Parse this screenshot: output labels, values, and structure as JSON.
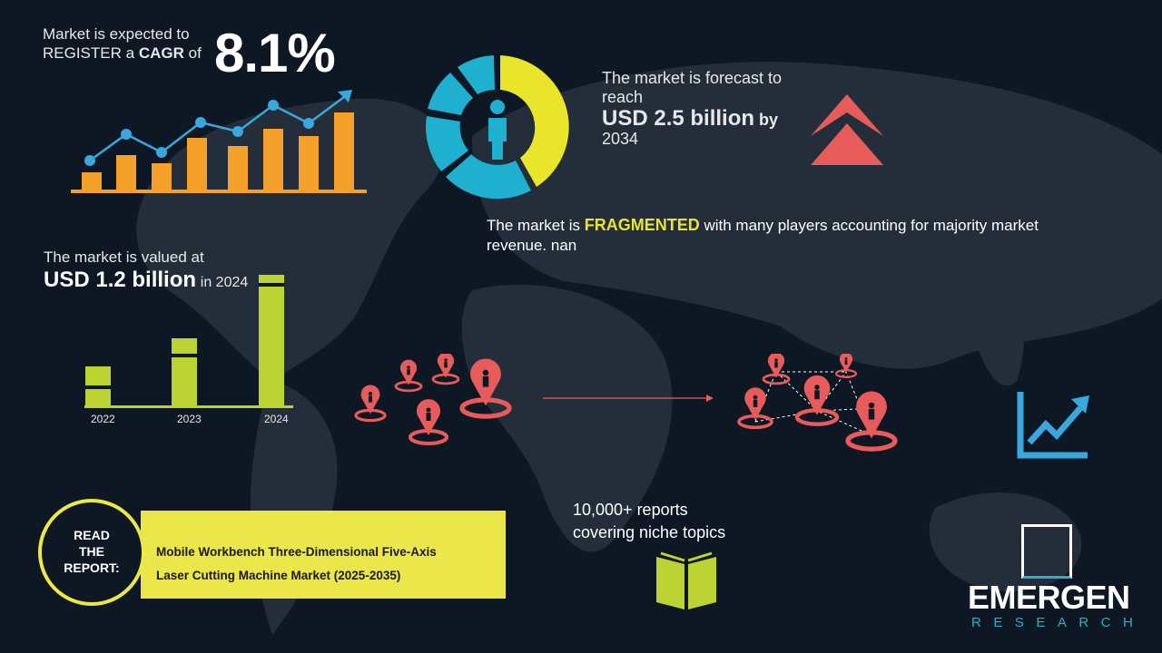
{
  "cagr": {
    "line1": "Market is expected to",
    "line2_prefix": "REGISTER a",
    "line2_bold": "CAGR",
    "line2_suffix": "of",
    "value": "8.1%"
  },
  "forecast": {
    "line1": "The market is forecast to",
    "line2": "reach",
    "value": "USD 2.5 billion",
    "by": "by",
    "year": "2034"
  },
  "fragmented": {
    "prefix": "The market is",
    "highlight": "FRAGMENTED",
    "suffix": "with many players accounting for majority market",
    "line2": "revenue. nan"
  },
  "valued": {
    "line1": "The market is valued at",
    "value": "USD 1.2 billion",
    "suffix": "in 2024"
  },
  "chart_data": {
    "type": "bar",
    "categories": [
      "2022",
      "2023",
      "2024"
    ],
    "title": "",
    "xlabel": "",
    "ylabel": ""
  },
  "reports": {
    "line1": "10,000+ reports",
    "line2": "covering niche topics"
  },
  "read_report": {
    "label_lines": [
      "READ",
      "THE",
      "REPORT:"
    ],
    "title_line1": "Mobile Workbench Three-Dimensional Five-Axis",
    "title_line2": "Laser Cutting Machine Market (2025-2035)"
  },
  "logo": {
    "name": "EMERGEN",
    "sub": "RESEARCH"
  },
  "colors": {
    "background": "#0e1824",
    "orange": "#f5a02a",
    "blue": "#3aa7df",
    "yellow": "#e8e52a",
    "lime": "#bcd334",
    "red": "#e85b5b",
    "teal": "#2ab0c8"
  },
  "icons": [
    "trend-bar-chart-icon",
    "donut-person-icon",
    "double-chevron-up-icon",
    "map-pin-icon",
    "trend-arrow-icon",
    "book-icon",
    "emergen-logo"
  ]
}
